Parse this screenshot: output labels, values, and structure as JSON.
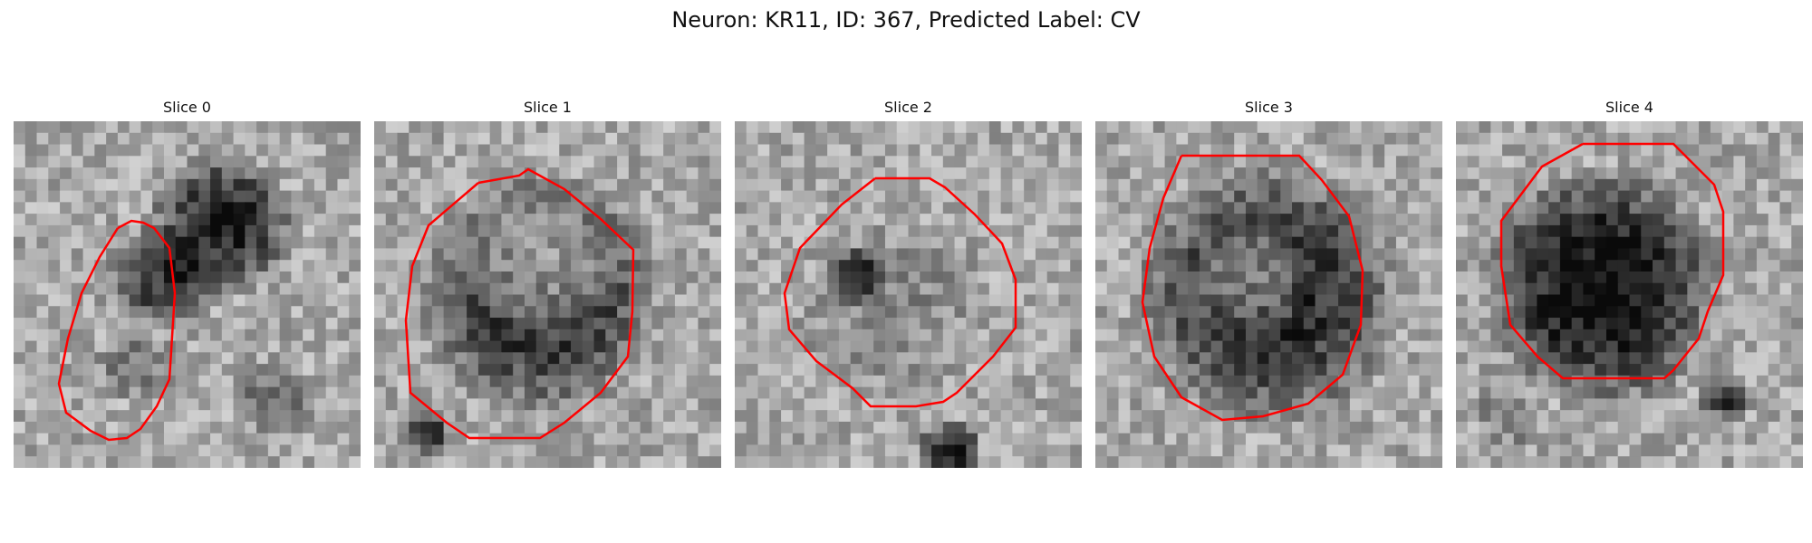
{
  "figure": {
    "title": "Neuron: KR11, ID: 367, Predicted Label: CV"
  },
  "panels": [
    {
      "title": "Slice 0"
    },
    {
      "title": "Slice 1"
    },
    {
      "title": "Slice 2"
    },
    {
      "title": "Slice 3"
    },
    {
      "title": "Slice 4"
    }
  ],
  "colors": {
    "contour": "#ff0000",
    "colormap": "grayscale"
  }
}
